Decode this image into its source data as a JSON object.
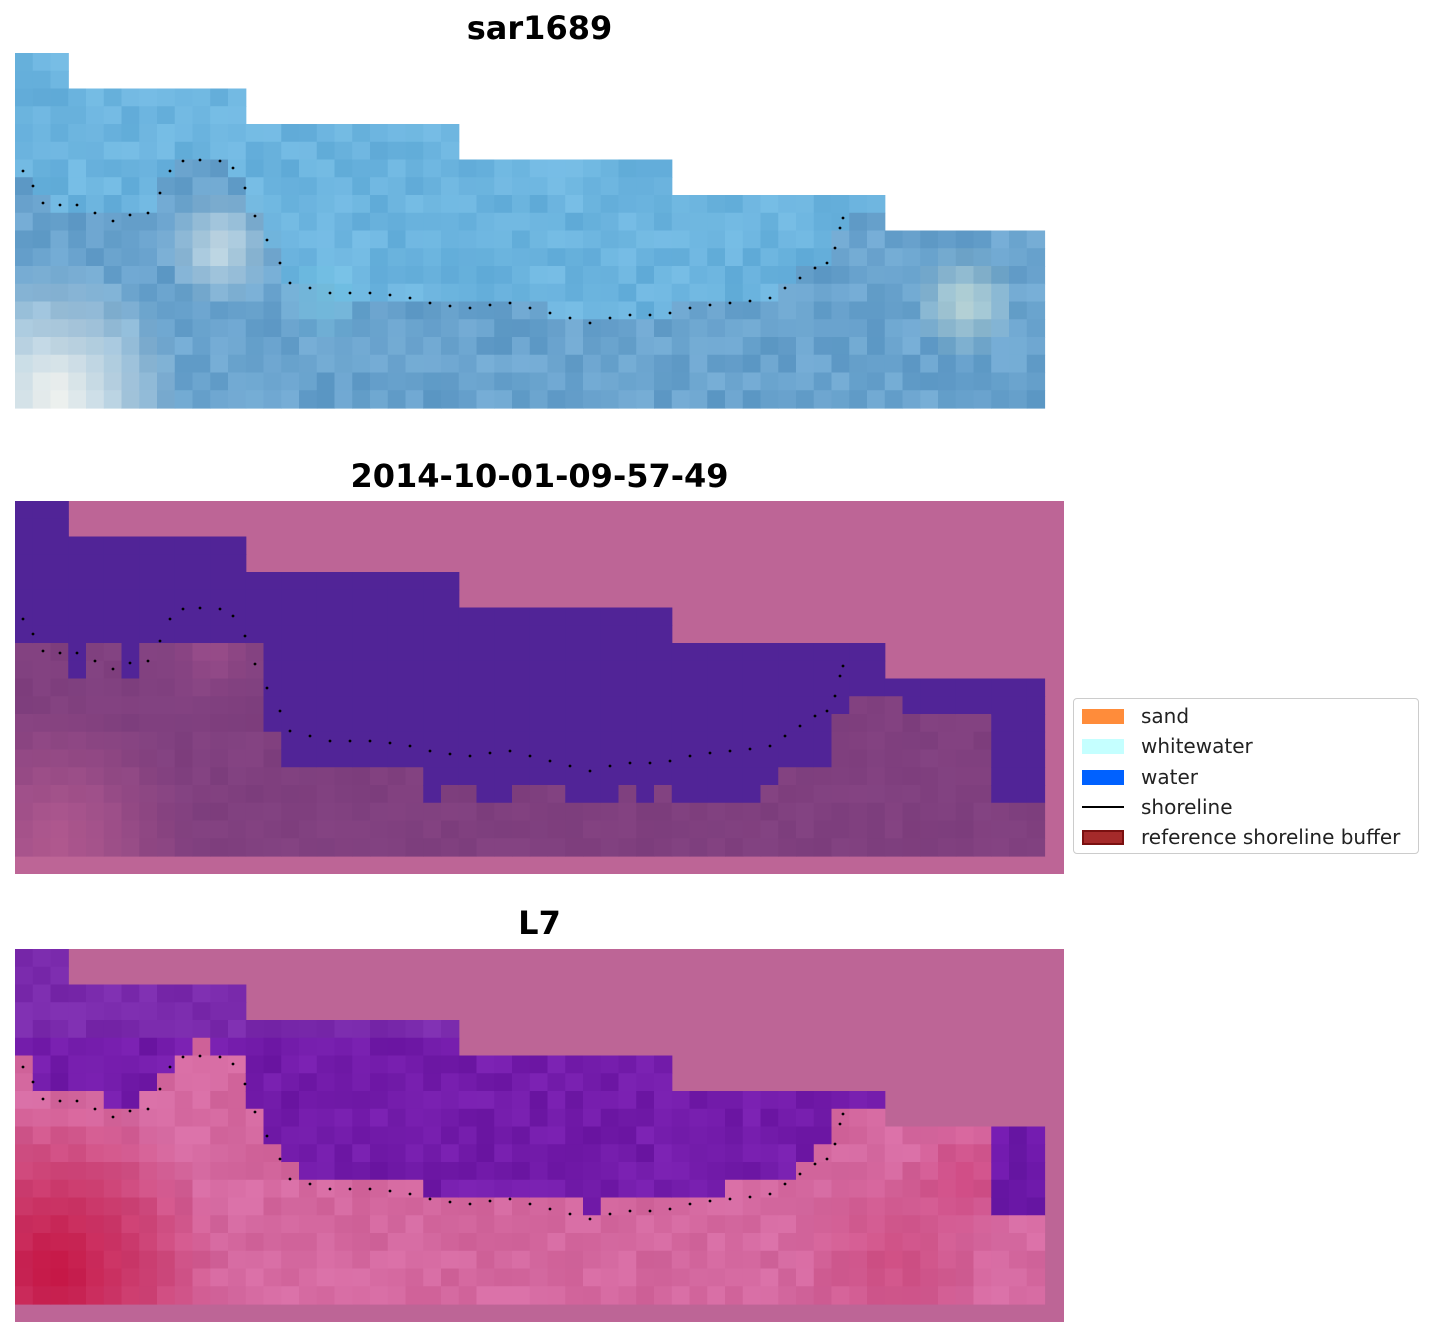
{
  "chart_data": [
    {
      "type": "heatmap",
      "title": "sar1689",
      "description_series": "satellite RGB image with detected shoreline",
      "colors": {
        "sky": "#5fb8e6",
        "mid": "#5a9dc9",
        "bright": "#d8e8f0"
      }
    },
    {
      "type": "heatmap",
      "title": "2014-10-01-09-57-49",
      "colors": {
        "water": "#512497",
        "land": "#7c3d7c",
        "background": "#bd6596"
      }
    },
    {
      "type": "heatmap",
      "title": "L7",
      "colors": {
        "water": "#5e12a0",
        "land": "#c0406f",
        "background": "#bd6596"
      }
    }
  ],
  "legend": {
    "placement": "right",
    "items": [
      {
        "label": "sand",
        "kind": "patch",
        "color": "#ff8c3a"
      },
      {
        "label": "whitewater",
        "kind": "patch",
        "color": "#c5ffff"
      },
      {
        "label": "water",
        "kind": "patch",
        "color": "#0061ff"
      },
      {
        "label": "shoreline",
        "kind": "line",
        "color": "#000000"
      },
      {
        "label": "reference shoreline buffer",
        "kind": "patch",
        "color": "#a52a2a"
      }
    ]
  }
}
